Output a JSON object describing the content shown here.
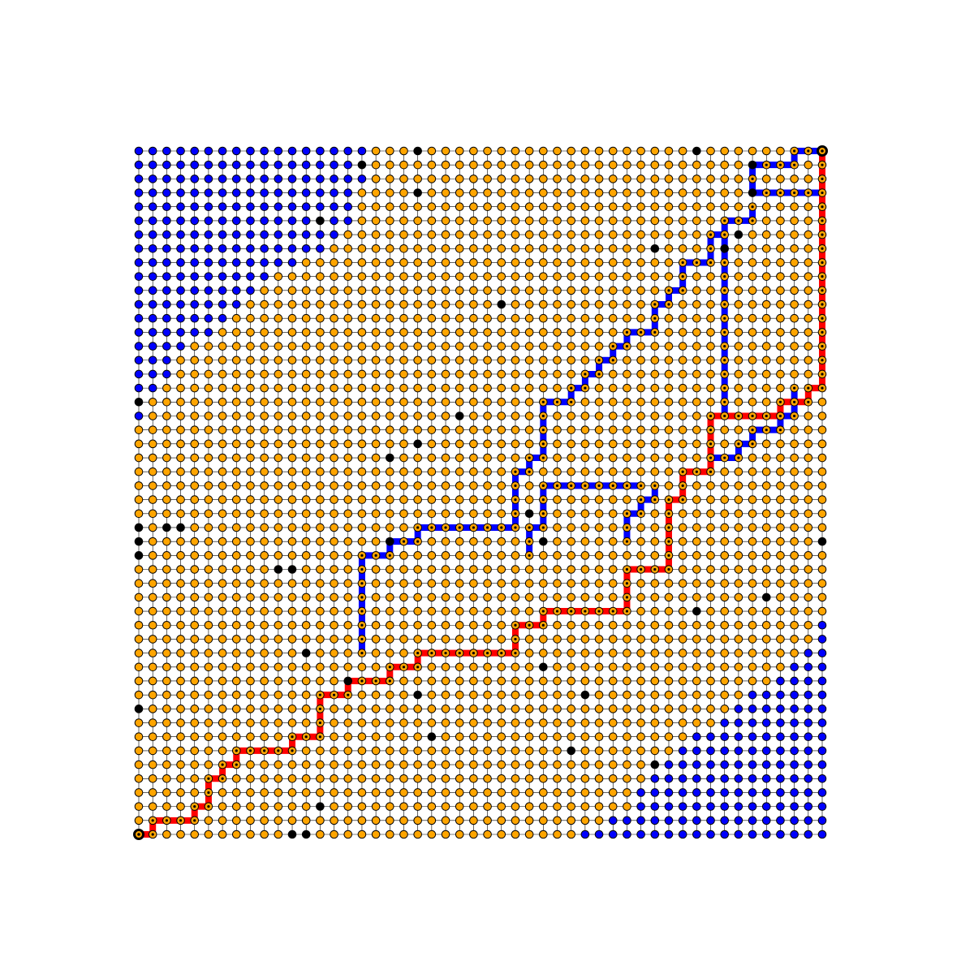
{
  "chart_data": {
    "type": "grid-graph",
    "title": "",
    "grid": {
      "cols": 50,
      "rows": 50,
      "grid_lines": true
    },
    "colors": {
      "open_node": "#ffa500",
      "obstacle_node": "#000000",
      "unvisited_node": "#0000ff",
      "path_red": "#ff0000",
      "path_blue": "#0000ff",
      "edge": "#000000",
      "background": "#ffffff"
    },
    "start": [
      0,
      0
    ],
    "goal": [
      49,
      49
    ],
    "path_red": [
      [
        0,
        0
      ],
      [
        1,
        0
      ],
      [
        1,
        1
      ],
      [
        2,
        1
      ],
      [
        3,
        1
      ],
      [
        4,
        1
      ],
      [
        4,
        2
      ],
      [
        5,
        2
      ],
      [
        5,
        3
      ],
      [
        5,
        4
      ],
      [
        6,
        4
      ],
      [
        6,
        5
      ],
      [
        7,
        5
      ],
      [
        7,
        6
      ],
      [
        8,
        6
      ],
      [
        9,
        6
      ],
      [
        10,
        6
      ],
      [
        11,
        6
      ],
      [
        11,
        7
      ],
      [
        12,
        7
      ],
      [
        13,
        7
      ],
      [
        13,
        8
      ],
      [
        13,
        9
      ],
      [
        13,
        10
      ],
      [
        14,
        10
      ],
      [
        15,
        10
      ],
      [
        15,
        11
      ],
      [
        16,
        11
      ],
      [
        17,
        11
      ],
      [
        18,
        11
      ],
      [
        18,
        12
      ],
      [
        19,
        12
      ],
      [
        20,
        12
      ],
      [
        20,
        13
      ],
      [
        21,
        13
      ],
      [
        22,
        13
      ],
      [
        23,
        13
      ],
      [
        24,
        13
      ],
      [
        25,
        13
      ],
      [
        26,
        13
      ],
      [
        27,
        13
      ],
      [
        27,
        14
      ],
      [
        27,
        15
      ],
      [
        28,
        15
      ],
      [
        29,
        15
      ],
      [
        29,
        16
      ],
      [
        30,
        16
      ],
      [
        31,
        16
      ],
      [
        32,
        16
      ],
      [
        33,
        16
      ],
      [
        34,
        16
      ],
      [
        35,
        16
      ],
      [
        35,
        17
      ],
      [
        35,
        18
      ],
      [
        35,
        19
      ],
      [
        36,
        19
      ],
      [
        37,
        19
      ],
      [
        38,
        19
      ],
      [
        38,
        20
      ],
      [
        38,
        21
      ],
      [
        38,
        22
      ],
      [
        38,
        23
      ],
      [
        38,
        24
      ],
      [
        39,
        24
      ],
      [
        39,
        25
      ],
      [
        39,
        26
      ],
      [
        40,
        26
      ],
      [
        41,
        26
      ],
      [
        41,
        27
      ],
      [
        41,
        28
      ],
      [
        41,
        29
      ],
      [
        41,
        30
      ],
      [
        42,
        30
      ],
      [
        43,
        30
      ],
      [
        44,
        30
      ],
      [
        45,
        30
      ],
      [
        46,
        30
      ],
      [
        46,
        31
      ],
      [
        47,
        31
      ],
      [
        48,
        31
      ],
      [
        48,
        32
      ],
      [
        49,
        32
      ],
      [
        49,
        33
      ],
      [
        49,
        34
      ],
      [
        49,
        35
      ],
      [
        49,
        36
      ],
      [
        49,
        37
      ],
      [
        49,
        38
      ],
      [
        49,
        39
      ],
      [
        49,
        40
      ],
      [
        49,
        41
      ],
      [
        49,
        42
      ],
      [
        49,
        43
      ],
      [
        49,
        44
      ],
      [
        49,
        45
      ],
      [
        49,
        46
      ],
      [
        49,
        47
      ],
      [
        49,
        48
      ],
      [
        49,
        49
      ]
    ],
    "path_blue": [
      [
        49,
        49
      ],
      [
        48,
        49
      ],
      [
        47,
        49
      ],
      [
        47,
        48
      ],
      [
        46,
        48
      ],
      [
        45,
        48
      ],
      [
        44,
        48
      ],
      [
        44,
        47
      ],
      [
        44,
        46
      ],
      [
        45,
        46
      ],
      [
        46,
        46
      ],
      [
        47,
        46
      ],
      [
        48,
        46
      ],
      [
        49,
        46
      ],
      [
        44,
        45
      ],
      [
        44,
        44
      ],
      [
        43,
        44
      ],
      [
        42,
        44
      ],
      [
        42,
        43
      ],
      [
        41,
        43
      ],
      [
        41,
        42
      ],
      [
        41,
        41
      ],
      [
        40,
        41
      ],
      [
        39,
        41
      ],
      [
        39,
        40
      ],
      [
        39,
        39
      ],
      [
        38,
        39
      ],
      [
        38,
        38
      ],
      [
        37,
        38
      ],
      [
        37,
        37
      ],
      [
        37,
        36
      ],
      [
        36,
        36
      ],
      [
        35,
        36
      ],
      [
        35,
        35
      ],
      [
        34,
        35
      ],
      [
        34,
        34
      ],
      [
        33,
        34
      ],
      [
        33,
        33
      ],
      [
        32,
        33
      ],
      [
        32,
        32
      ],
      [
        31,
        32
      ],
      [
        31,
        31
      ],
      [
        30,
        31
      ],
      [
        29,
        31
      ],
      [
        29,
        30
      ],
      [
        29,
        29
      ],
      [
        29,
        28
      ],
      [
        29,
        27
      ],
      [
        28,
        27
      ],
      [
        28,
        26
      ],
      [
        27,
        26
      ],
      [
        27,
        25
      ],
      [
        27,
        24
      ],
      [
        27,
        23
      ],
      [
        27,
        22
      ],
      [
        26,
        22
      ],
      [
        25,
        22
      ],
      [
        24,
        22
      ],
      [
        23,
        22
      ],
      [
        22,
        22
      ],
      [
        21,
        22
      ],
      [
        20,
        22
      ],
      [
        20,
        21
      ],
      [
        19,
        21
      ],
      [
        18,
        21
      ],
      [
        18,
        20
      ],
      [
        17,
        20
      ],
      [
        16,
        20
      ],
      [
        16,
        19
      ],
      [
        16,
        18
      ],
      [
        16,
        17
      ],
      [
        16,
        16
      ],
      [
        16,
        15
      ],
      [
        16,
        14
      ],
      [
        16,
        13
      ],
      [
        42,
        43
      ],
      [
        42,
        42
      ],
      [
        42,
        41
      ],
      [
        42,
        40
      ],
      [
        42,
        39
      ],
      [
        42,
        38
      ],
      [
        42,
        37
      ],
      [
        42,
        36
      ],
      [
        42,
        35
      ],
      [
        42,
        34
      ],
      [
        42,
        33
      ],
      [
        42,
        32
      ],
      [
        42,
        31
      ],
      [
        42,
        30
      ],
      [
        43,
        30
      ],
      [
        47,
        32
      ],
      [
        47,
        31
      ],
      [
        47,
        30
      ],
      [
        46,
        30
      ],
      [
        46,
        29
      ],
      [
        45,
        29
      ],
      [
        44,
        29
      ],
      [
        44,
        28
      ],
      [
        43,
        28
      ],
      [
        43,
        27
      ],
      [
        42,
        27
      ],
      [
        41,
        27
      ],
      [
        36,
        25
      ],
      [
        35,
        25
      ],
      [
        34,
        25
      ],
      [
        33,
        25
      ],
      [
        32,
        25
      ],
      [
        31,
        25
      ],
      [
        30,
        25
      ],
      [
        29,
        25
      ],
      [
        29,
        24
      ],
      [
        29,
        23
      ],
      [
        29,
        22
      ],
      [
        28,
        22
      ],
      [
        28,
        21
      ],
      [
        28,
        20
      ],
      [
        37,
        25
      ],
      [
        37,
        24
      ],
      [
        36,
        24
      ],
      [
        36,
        23
      ],
      [
        35,
        23
      ],
      [
        35,
        22
      ],
      [
        35,
        21
      ]
    ],
    "obstacles": [
      [
        20,
        49
      ],
      [
        40,
        49
      ],
      [
        16,
        48
      ],
      [
        44,
        48
      ],
      [
        20,
        46
      ],
      [
        44,
        46
      ],
      [
        13,
        44
      ],
      [
        37,
        42
      ],
      [
        42,
        42
      ],
      [
        0,
        31
      ],
      [
        23,
        30
      ],
      [
        20,
        28
      ],
      [
        18,
        27
      ],
      [
        0,
        22
      ],
      [
        2,
        22
      ],
      [
        3,
        22
      ],
      [
        0,
        21
      ],
      [
        29,
        21
      ],
      [
        18,
        21
      ],
      [
        49,
        21
      ],
      [
        0,
        20
      ],
      [
        10,
        19
      ],
      [
        11,
        19
      ],
      [
        45,
        17
      ],
      [
        40,
        16
      ],
      [
        12,
        13
      ],
      [
        29,
        12
      ],
      [
        15,
        11
      ],
      [
        20,
        10
      ],
      [
        32,
        10
      ],
      [
        0,
        9
      ],
      [
        21,
        7
      ],
      [
        31,
        6
      ],
      [
        13,
        2
      ],
      [
        37,
        5
      ],
      [
        11,
        0
      ],
      [
        12,
        0
      ],
      [
        26,
        38
      ],
      [
        28,
        23
      ],
      [
        43,
        43
      ],
      [
        40,
        50
      ]
    ],
    "blue_region_top_left_extents": [
      17,
      17,
      17,
      16,
      16,
      16,
      15,
      14,
      12,
      10,
      9,
      8,
      7,
      6,
      4,
      3,
      3,
      2,
      1,
      1
    ],
    "blue_region_bottom_right_extents": [
      18,
      16,
      14,
      14,
      13,
      12,
      11,
      10,
      8,
      7,
      6,
      4,
      3,
      2,
      1,
      1
    ]
  }
}
